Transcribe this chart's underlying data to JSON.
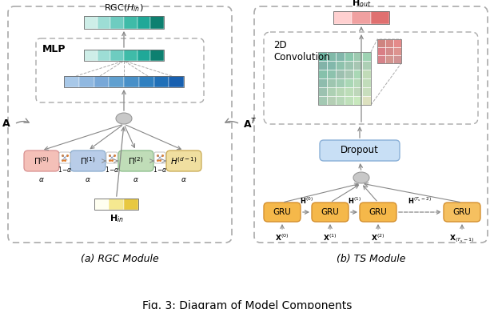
{
  "title": "Fig. 3: Diagram of Model Components",
  "subtitle_a": "(a) RGC Module",
  "subtitle_b": "(b) TS Module",
  "bg_color": "#ffffff",
  "A_label": "$\\mathbf{A}$",
  "AT_label": "$\\mathbf{A}^T$",
  "Hin_label": "$\\mathbf{H}_{in}$",
  "Hout_label": "$\\mathbf{H}_{out}$",
  "RGC_label": "RGC($H_{in}$)",
  "MLP_label": "MLP",
  "Dropout_label": "Dropout",
  "Conv2D_label": "2D\nConvolution",
  "rgc_colors": [
    "#ceeee8",
    "#9dddd5",
    "#6eccc0",
    "#3fbba8",
    "#20a898",
    "#0d8070"
  ],
  "mlp_colors": [
    "#ceeee8",
    "#9dddd5",
    "#6eccc0",
    "#3fbba8",
    "#20a898",
    "#0d8070"
  ],
  "hin_colors": [
    "#fffff0",
    "#f5e890",
    "#e8c840"
  ],
  "hout_colors": [
    "#ffd0d0",
    "#f0a0a0",
    "#e07070"
  ],
  "pi0_color": "#f4c0b8",
  "pi1_color": "#b8cce8",
  "pi2_color": "#c0ddb8",
  "hd_color": "#f0dfa0",
  "gru_color": "#f5b84a",
  "gru_border": "#d49030",
  "dropout_fc": "#c8dff5",
  "dropout_ec": "#8ab0d8"
}
